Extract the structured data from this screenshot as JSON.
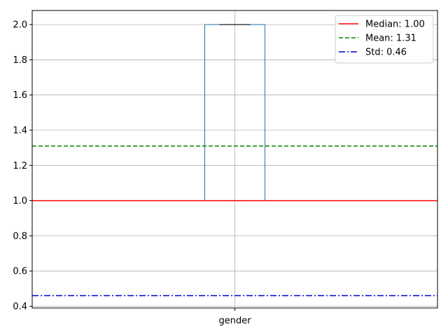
{
  "chart_data": {
    "type": "box",
    "categories": [
      "gender"
    ],
    "ylim": [
      0.39,
      2.08
    ],
    "yticks": [
      "0.4",
      "0.6",
      "0.8",
      "1.0",
      "1.2",
      "1.4",
      "1.6",
      "1.8",
      "2.0"
    ],
    "grid": true,
    "box": {
      "category": "gender",
      "whisker_low": 1.0,
      "q1": 1.0,
      "median": 1.0,
      "q3": 2.0,
      "whisker_high": 2.0
    },
    "reference_lines": [
      {
        "label": "Median: 1.00",
        "value": 1.0,
        "color": "#ff0000",
        "style": "solid"
      },
      {
        "label": "Mean: 1.31",
        "value": 1.31,
        "color": "#008000",
        "style": "dashed"
      },
      {
        "label": "Std: 0.46",
        "value": 0.46,
        "color": "#0000cc",
        "style": "dashdot"
      }
    ],
    "legend_position": "top-right",
    "colors": {
      "box": "#1f77b4",
      "whisker": "#000000",
      "median_line": "#2ca02c",
      "grid": "#b0b0b0"
    }
  }
}
